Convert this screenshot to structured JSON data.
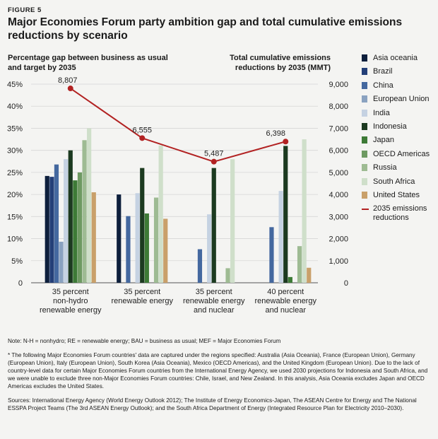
{
  "figure_label": "FIGURE 5",
  "chart_data": {
    "type": "bar",
    "title": "Major Economies Forum party ambition gap and total cumulative emissions reductions by scenario",
    "ylabel": "Percentage gap between business as usual and target by 2035",
    "y2label": "Total cumulative emissions reductions by 2035 (MMT)",
    "ylim": [
      0,
      45
    ],
    "y2lim": [
      0,
      9000
    ],
    "yticks": [
      "0",
      "5%",
      "10%",
      "15%",
      "20%",
      "25%",
      "30%",
      "35%",
      "40%",
      "45%"
    ],
    "y2ticks": [
      "0",
      "1,000",
      "2,000",
      "3,000",
      "4,000",
      "5,000",
      "6,000",
      "7,000",
      "8,000",
      "9,000"
    ],
    "categories": [
      {
        "line1": "35 percent",
        "line2": "non-hydro",
        "line3": "renewable energy"
      },
      {
        "line1": "35 percent",
        "line2": "renewable energy",
        "line3": ""
      },
      {
        "line1": "35 percent",
        "line2": "renewable energy",
        "line3": "and nuclear"
      },
      {
        "line1": "40 percent",
        "line2": "renewable energy",
        "line3": "and nuclear"
      }
    ],
    "series": [
      {
        "name": "Asia oceania",
        "color": "#0d1f3c",
        "values": [
          24.2,
          20.0,
          0,
          0
        ]
      },
      {
        "name": "Brazil",
        "color": "#233f78",
        "values": [
          24.0,
          0,
          0,
          0
        ]
      },
      {
        "name": "China",
        "color": "#44689f",
        "values": [
          26.8,
          15.1,
          7.6,
          12.6
        ]
      },
      {
        "name": "European Union",
        "color": "#8aa2c0",
        "values": [
          9.3,
          0,
          0,
          0
        ]
      },
      {
        "name": "India",
        "color": "#c5d2e2",
        "values": [
          28.0,
          20.3,
          15.5,
          20.8
        ]
      },
      {
        "name": "Indonesia",
        "color": "#1c3a20",
        "values": [
          30.0,
          26.0,
          26.0,
          31.0
        ]
      },
      {
        "name": "Japan",
        "color": "#3d7a36",
        "values": [
          23.2,
          15.7,
          0,
          1.3
        ]
      },
      {
        "name": "OECD Americas",
        "color": "#6e9a62",
        "values": [
          25.0,
          0,
          0,
          0
        ]
      },
      {
        "name": "Russia",
        "color": "#9ebb93",
        "values": [
          32.3,
          19.3,
          3.3,
          8.3
        ]
      },
      {
        "name": "South Africa",
        "color": "#cfdfca",
        "values": [
          35.0,
          31.1,
          28.0,
          32.5
        ]
      },
      {
        "name": "United States",
        "color": "#c9a06a",
        "values": [
          20.5,
          14.5,
          0,
          3.4
        ]
      }
    ],
    "line_series": {
      "name": "2035 emissions reductions",
      "color": "#b22222",
      "values": [
        8807,
        6555,
        5487,
        6398
      ],
      "labels": [
        "8,807",
        "6,555",
        "5,487",
        "6,398"
      ]
    }
  },
  "notes": {
    "note": "Note: N-H = nonhydro; RE = renewable energy; BAU = business as usual; MEF = Major Economies Forum",
    "footnote": "* The following Major Economies Forum countries' data are captured under the regions specified: Australia (Asia Oceania), France (European Union), Germany (European Union), Italy (European Union), South Korea (Asia Oceania), Mexico (OECD Americas), and the United Kingdom (European Union). Due to the lack of country-level data for certain Major Economies Forum countries from the International Energy Agency, we used 2030 projections for Indonesia and South Africa, and we were unable to exclude three non-Major Economies Forum countries: Chile, Israel, and New Zealand. In this analysis, Asia Oceania excludes Japan and OECD Americas excludes the United States.",
    "sources": "Sources: International Energy Agency (World Energy Outlook 2012); The Institute of Energy Economics-Japan, The ASEAN Centre for Energy and The National ESSPA Project Teams (The 3rd ASEAN Energy Outlook); and the South Africa Department of Energy (Integrated Resource Plan for Electricity 2010–2030)."
  }
}
